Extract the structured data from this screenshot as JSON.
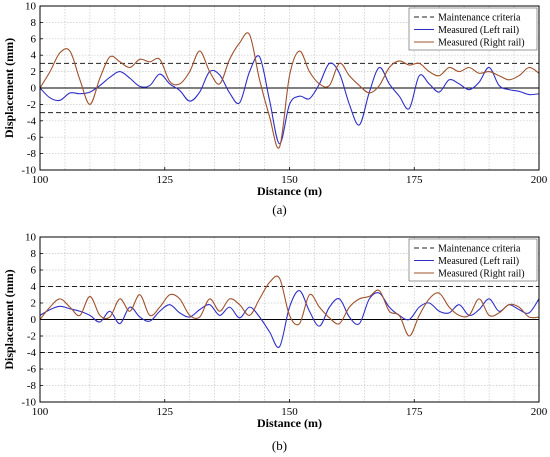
{
  "chart_data": [
    {
      "type": "line",
      "panel_label": "(a)",
      "xlabel": "Distance (m)",
      "ylabel": "Displacement (mm)",
      "xlim": [
        100,
        200
      ],
      "ylim": [
        -10,
        10
      ],
      "x_ticks": [
        100,
        125,
        150,
        175,
        200
      ],
      "y_ticks": [
        -10,
        -8,
        -6,
        -4,
        -2,
        0,
        2,
        4,
        6,
        8,
        10
      ],
      "grid": true,
      "legend": "top-right",
      "criteria": {
        "name": "Maintenance criteria",
        "values": [
          3,
          -3
        ],
        "color": "#222222"
      },
      "series": [
        {
          "name": "Measured (Left rail)",
          "color": "#2f2fc8",
          "x": [
            100,
            102,
            104,
            106,
            108,
            110,
            112,
            114,
            116,
            118,
            120,
            122,
            124,
            126,
            128,
            130,
            132,
            134,
            136,
            138,
            140,
            142,
            144,
            146,
            148,
            150,
            152,
            154,
            156,
            158,
            160,
            162,
            164,
            166,
            168,
            170,
            172,
            174,
            176,
            178,
            180,
            182,
            184,
            186,
            188,
            190,
            192,
            194,
            196,
            198,
            200
          ],
          "values": [
            0,
            -1.2,
            -1.5,
            -0.6,
            -0.7,
            -0.5,
            0.3,
            1.3,
            2.0,
            1.2,
            0.2,
            0.3,
            1.7,
            0.5,
            -0.3,
            -1.6,
            -0.5,
            2.0,
            1.6,
            -0.6,
            -1.8,
            2.0,
            3.8,
            -1.5,
            -6.8,
            -2.0,
            -1.0,
            -1.3,
            0.5,
            3.0,
            1.8,
            -2.0,
            -4.5,
            -0.5,
            2.5,
            0.5,
            -1.0,
            -2.5,
            1.5,
            0.5,
            -0.5,
            1.0,
            0.5,
            -0.2,
            0.7,
            2.5,
            0.3,
            -0.2,
            -0.4,
            -0.8,
            -0.7
          ]
        },
        {
          "name": "Measured (Right rail)",
          "color": "#a0522d",
          "x": [
            100,
            102,
            104,
            106,
            108,
            110,
            112,
            114,
            116,
            118,
            120,
            122,
            124,
            126,
            128,
            130,
            132,
            134,
            136,
            138,
            140,
            142,
            144,
            146,
            148,
            150,
            152,
            154,
            156,
            158,
            160,
            162,
            164,
            166,
            168,
            170,
            172,
            174,
            176,
            178,
            180,
            182,
            184,
            186,
            188,
            190,
            192,
            194,
            196,
            198,
            200
          ],
          "values": [
            0,
            2.0,
            4.3,
            4.5,
            1.0,
            -2.0,
            1.2,
            3.8,
            3.2,
            2.5,
            3.5,
            3.2,
            3.5,
            0.8,
            0.5,
            2.0,
            4.5,
            2.0,
            0.5,
            3.5,
            5.5,
            6.5,
            1.0,
            -3.5,
            -7.2,
            1.5,
            4.5,
            2.0,
            0.5,
            0.3,
            3.0,
            1.5,
            0.3,
            -0.6,
            0.3,
            2.5,
            3.3,
            2.8,
            3.0,
            2.0,
            1.5,
            2.5,
            2.0,
            2.5,
            1.8,
            2.0,
            1.5,
            1.0,
            1.5,
            2.5,
            1.8
          ]
        }
      ]
    },
    {
      "type": "line",
      "panel_label": "(b)",
      "xlabel": "Distance (m)",
      "ylabel": "Displacement (mm)",
      "xlim": [
        100,
        200
      ],
      "ylim": [
        -10,
        10
      ],
      "x_ticks": [
        100,
        125,
        150,
        175,
        200
      ],
      "y_ticks": [
        -10,
        -8,
        -6,
        -4,
        -2,
        0,
        2,
        4,
        6,
        8,
        10
      ],
      "grid": true,
      "legend": "top-right",
      "criteria": {
        "name": "Maintenance criteria",
        "values": [
          4,
          -4
        ],
        "color": "#222222"
      },
      "series": [
        {
          "name": "Measured (Left rail)",
          "color": "#2f2fc8",
          "x": [
            100,
            102,
            104,
            106,
            108,
            110,
            112,
            114,
            116,
            118,
            120,
            122,
            124,
            126,
            128,
            130,
            132,
            134,
            136,
            138,
            140,
            142,
            144,
            146,
            148,
            150,
            152,
            154,
            156,
            158,
            160,
            162,
            164,
            166,
            168,
            170,
            172,
            174,
            176,
            178,
            180,
            182,
            184,
            186,
            188,
            190,
            192,
            194,
            196,
            198,
            200
          ],
          "values": [
            0.5,
            1.2,
            1.6,
            1.3,
            1.0,
            0.5,
            -0.3,
            1.0,
            -0.5,
            1.5,
            0.3,
            -0.2,
            1.0,
            1.8,
            0.8,
            0.3,
            1.2,
            1.8,
            0.5,
            1.5,
            0.2,
            1.5,
            0.3,
            -1.5,
            -3.3,
            1.5,
            3.5,
            1.0,
            -0.8,
            1.5,
            2.5,
            0.3,
            -0.5,
            2.5,
            3.2,
            1.5,
            0.5,
            0.0,
            1.5,
            2.0,
            1.0,
            0.8,
            1.8,
            0.5,
            1.2,
            2.5,
            1.0,
            1.8,
            1.2,
            0.8,
            2.5
          ]
        },
        {
          "name": "Measured (Right rail)",
          "color": "#a0522d",
          "x": [
            100,
            102,
            104,
            106,
            108,
            110,
            112,
            114,
            116,
            118,
            120,
            122,
            124,
            126,
            128,
            130,
            132,
            134,
            136,
            138,
            140,
            142,
            144,
            146,
            148,
            150,
            152,
            154,
            156,
            158,
            160,
            162,
            164,
            166,
            168,
            170,
            172,
            174,
            176,
            178,
            180,
            182,
            184,
            186,
            188,
            190,
            192,
            194,
            196,
            198,
            200
          ],
          "values": [
            0,
            1.5,
            2.5,
            1.5,
            0.5,
            2.8,
            0.5,
            0.3,
            2.5,
            1.0,
            3.0,
            0.5,
            1.5,
            3.0,
            2.5,
            0.5,
            0.3,
            2.5,
            1.0,
            2.5,
            1.8,
            0.5,
            2.5,
            4.5,
            5.0,
            0.5,
            -0.5,
            3.0,
            1.5,
            0.2,
            -0.5,
            1.5,
            2.5,
            2.8,
            3.5,
            1.0,
            0.5,
            -2.0,
            0.5,
            2.5,
            3.2,
            1.5,
            0.5,
            0.5,
            2.5,
            0.5,
            0.8,
            1.8,
            1.5,
            0.3,
            0.3
          ]
        }
      ]
    }
  ]
}
